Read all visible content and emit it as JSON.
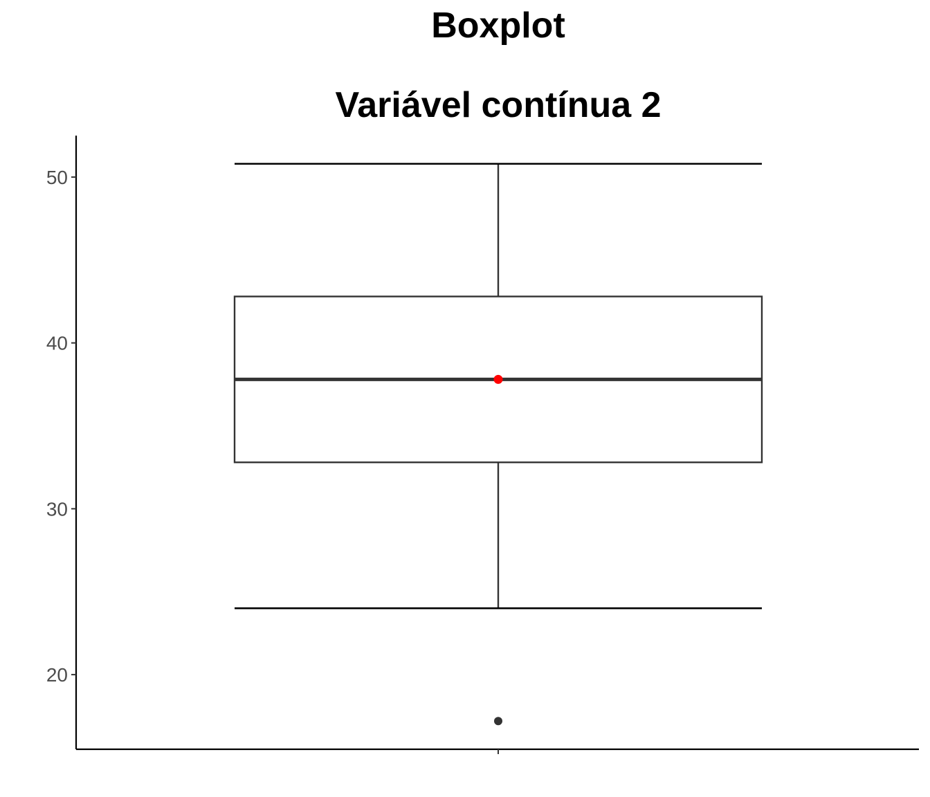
{
  "chart_data": {
    "type": "boxplot",
    "title": "Boxplot",
    "subtitle": "Variável contínua 2",
    "xlabel": "",
    "ylabel": "",
    "ylim": [
      15.5,
      52.5
    ],
    "y_ticks": [
      20,
      30,
      40,
      50
    ],
    "grid": false,
    "legend": "none",
    "box": {
      "whisker_low": 24,
      "q1": 32.8,
      "median": 37.8,
      "q3": 42.8,
      "whisker_high": 50.8,
      "mean": 37.8,
      "outliers": [
        17.2
      ]
    },
    "colors": {
      "box_line": "#333333",
      "mean_point": "#ff0000",
      "outlier_point": "#333333",
      "axis": "#000000",
      "tick_text": "#4d4d4d"
    }
  }
}
